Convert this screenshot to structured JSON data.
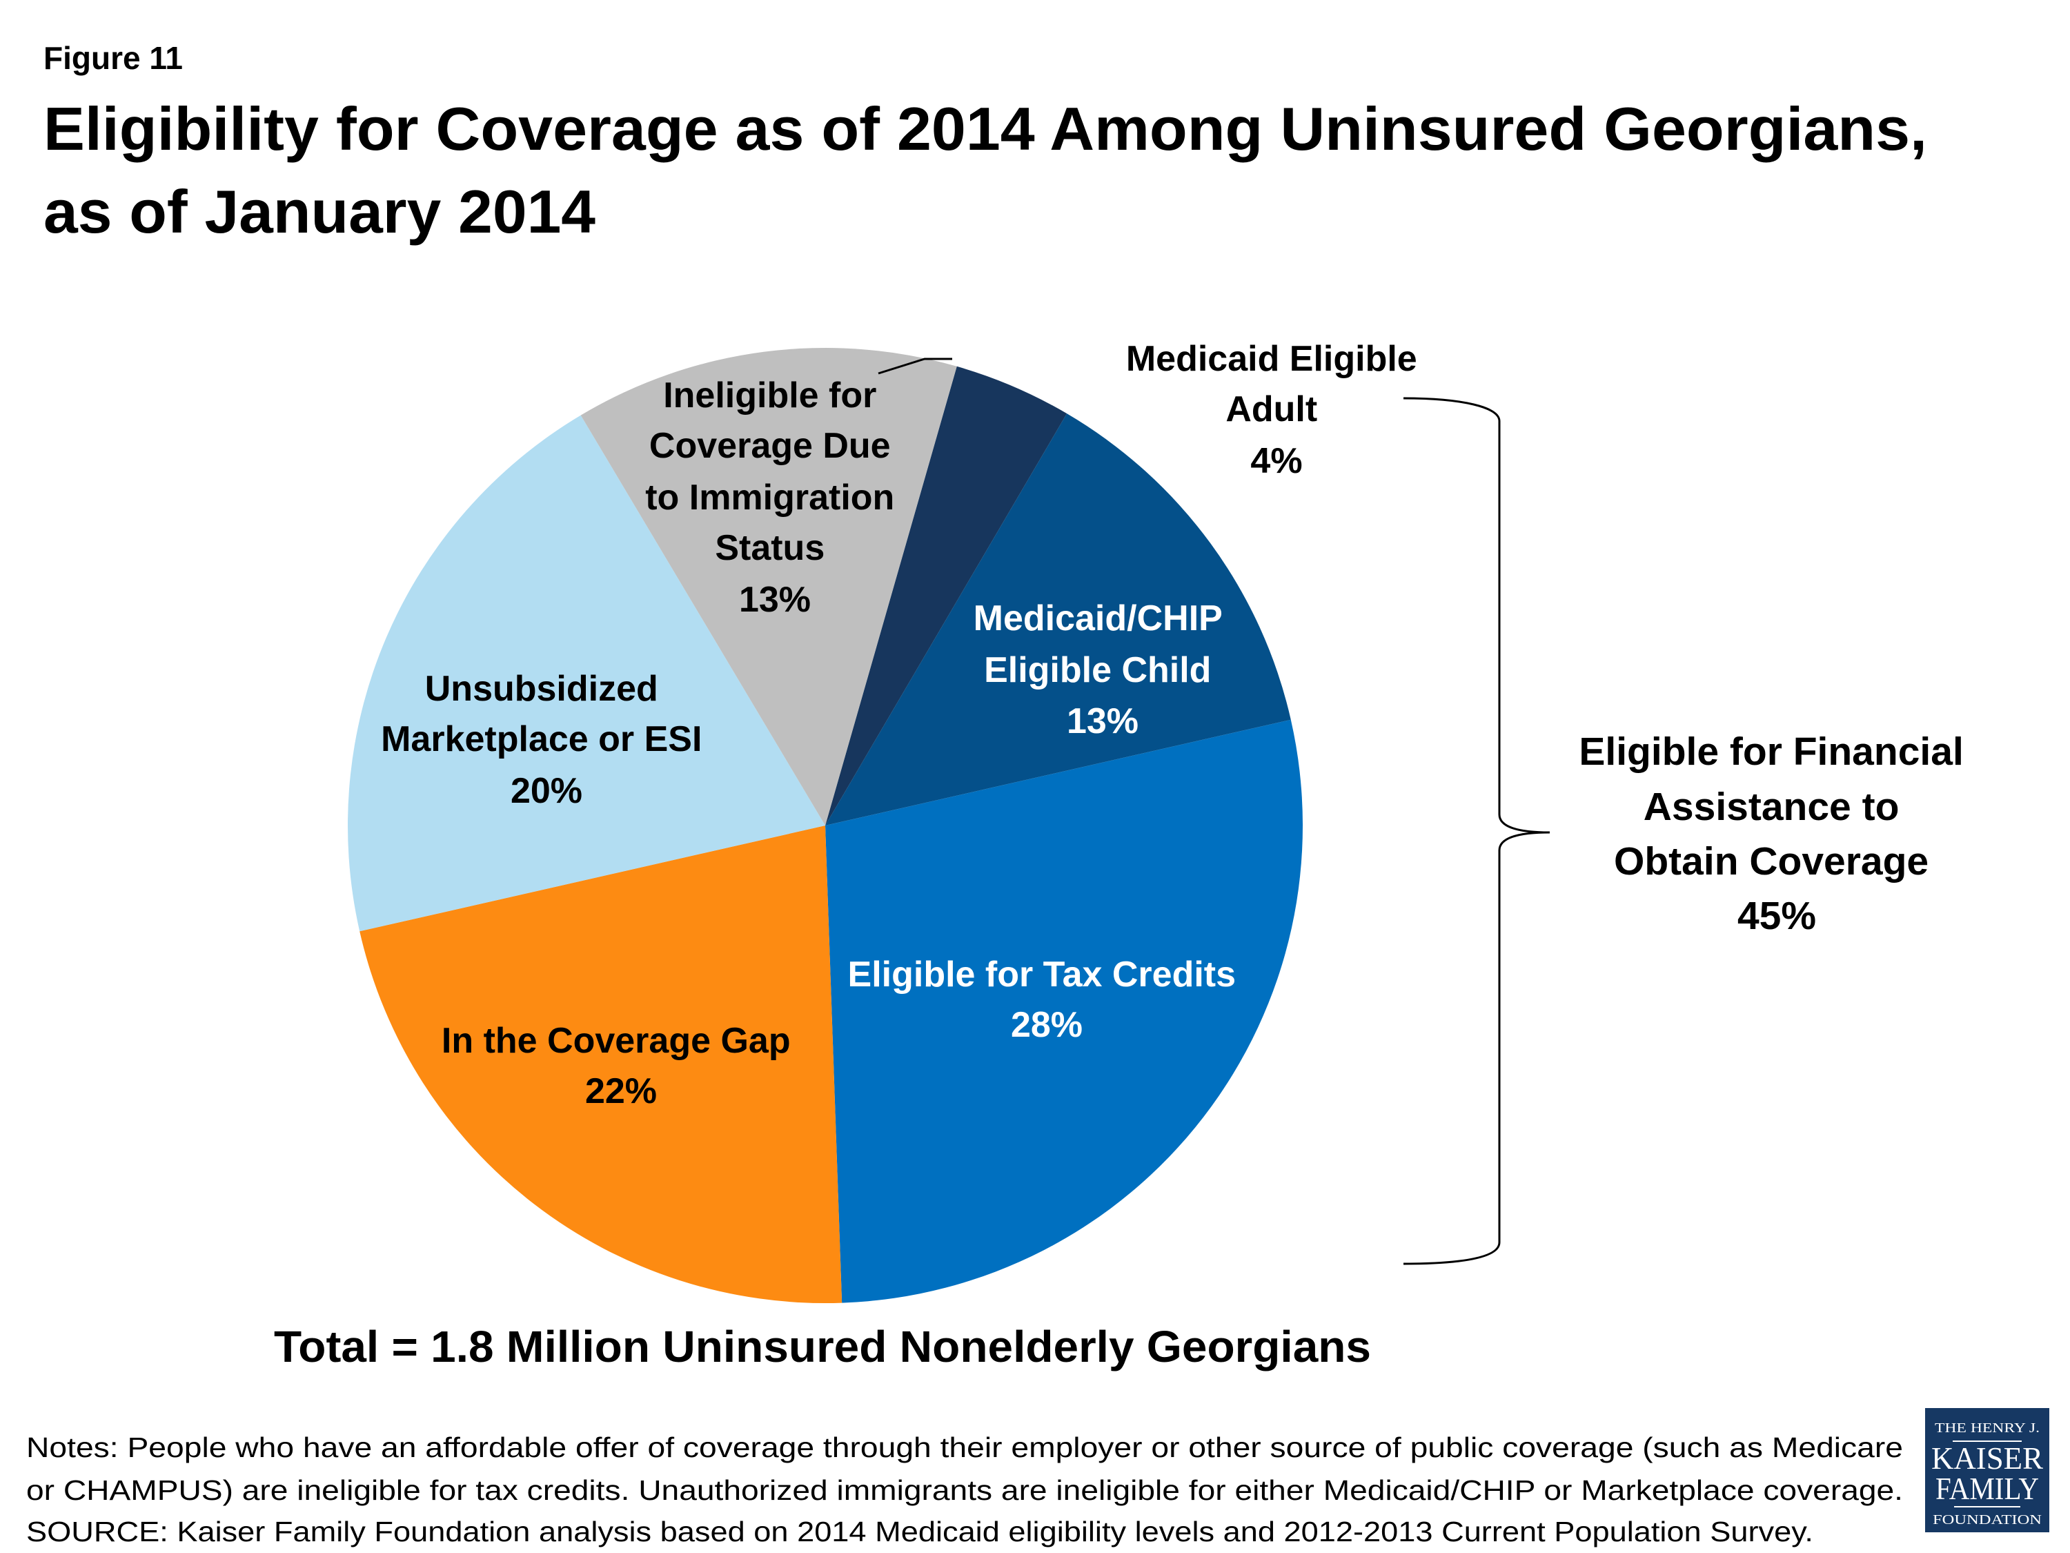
{
  "figure_label": "Figure 11",
  "title_line1": "Eligibility for Coverage as of 2014 Among Uninsured Georgians,",
  "title_line2": "as of January 2014",
  "chart_data": {
    "type": "pie",
    "title": "Eligibility for Coverage as of 2014 Among Uninsured Georgians, as of January 2014",
    "slices": [
      {
        "label": [
          "Medicaid Eligible",
          "Adult"
        ],
        "value": 4,
        "value_label": "4%",
        "color": "#17365d"
      },
      {
        "label": [
          "Medicaid/CHIP",
          "Eligible Child"
        ],
        "value": 13,
        "value_label": "13%",
        "color": "#04508a"
      },
      {
        "label": [
          "Eligible for Tax Credits"
        ],
        "value": 28,
        "value_label": "28%",
        "color": "#0070c0"
      },
      {
        "label": [
          "In the Coverage Gap"
        ],
        "value": 22,
        "value_label": "22%",
        "color": "#fd8b12"
      },
      {
        "label": [
          "Unsubsidized",
          "Marketplace or ESI"
        ],
        "value": 20,
        "value_label": "20%",
        "color": "#b2ddf2"
      },
      {
        "label": [
          "Ineligible for",
          "Coverage Due",
          "to Immigration",
          "Status"
        ],
        "value": 13,
        "value_label": "13%",
        "color": "#bfbfbf"
      }
    ],
    "bracket_annotation": {
      "lines": [
        "Eligible for Financial",
        "Assistance to",
        "Obtain Coverage"
      ],
      "value_label": "45%"
    },
    "total_label": "Total = 1.8 Million Uninsured Nonelderly Georgians"
  },
  "notes": [
    "Notes: People who have an affordable offer of coverage through their employer or other source of public coverage (such as Medicare",
    "or CHAMPUS) are ineligible for tax credits. Unauthorized immigrants are ineligible for either Medicaid/CHIP or Marketplace coverage.",
    "SOURCE: Kaiser Family Foundation analysis based on 2014 Medicaid eligibility levels and 2012-2013 Current Population Survey."
  ],
  "logo": {
    "lines": [
      "THE HENRY J.",
      "KAISER",
      "FAMILY",
      "FOUNDATION"
    ],
    "color": "#163863"
  }
}
